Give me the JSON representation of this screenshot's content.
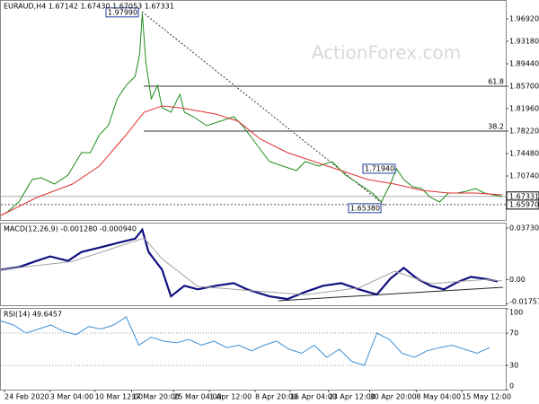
{
  "chart_data": [
    {
      "type": "line",
      "title": "EURAUD,H4 1.67142 1.67430 1.67053 1.67331",
      "watermark": "ActionForex.com",
      "xlim": [
        0,
        282
      ],
      "xticks": [
        {
          "value": 2,
          "label": "24 Feb 2020"
        },
        {
          "value": 27.5,
          "label": "3 Mar 04:00"
        },
        {
          "value": 52.5,
          "label": "10 Mar 12:00"
        },
        {
          "value": 73,
          "label": "17 Mar 20:00"
        },
        {
          "value": 96.5,
          "label": "25 Mar 04:00"
        },
        {
          "value": 116.5,
          "label": "1 Apr 12:00"
        },
        {
          "value": 142,
          "label": "8 Apr 20:00"
        },
        {
          "value": 161.5,
          "label": "16 Apr 04:00"
        },
        {
          "value": 183,
          "label": "23 Apr 12:00"
        },
        {
          "value": 206,
          "label": "30 Apr 20:00"
        },
        {
          "value": 232,
          "label": "8 May 04:00"
        },
        {
          "value": 257.5,
          "label": "15 May 12:00"
        }
      ],
      "ylim": [
        1.6341,
        1.9991
      ],
      "yticks": [
        {
          "value": 1.9692,
          "label": "1.96920"
        },
        {
          "value": 1.9318,
          "label": "1.93180"
        },
        {
          "value": 1.8944,
          "label": "1.89440"
        },
        {
          "value": 1.857,
          "label": "1.85700"
        },
        {
          "value": 1.8196,
          "label": "1.81960"
        },
        {
          "value": 1.7822,
          "label": "1.78220"
        },
        {
          "value": 1.7448,
          "label": "1.74480"
        },
        {
          "value": 1.7074,
          "label": "1.70740"
        }
      ],
      "series": [
        {
          "color": "#1e8c1e",
          "x": [
            2.5,
            10,
            17.5,
            22.5,
            30,
            37.5,
            45,
            50,
            55,
            60,
            65,
            70,
            75,
            77.5,
            79,
            81,
            84,
            87.5,
            90,
            95,
            100,
            102.5,
            107.5,
            115,
            122.5,
            130,
            135,
            142.5,
            150,
            157.5,
            165,
            170,
            177.5,
            185,
            192.5,
            200,
            207.5,
            212.5,
            217.5,
            221,
            225,
            230,
            235,
            240,
            245,
            250,
            255,
            260,
            265,
            270,
            275,
            280
          ],
          "values": [
            1.6446,
            1.664,
            1.7014,
            1.7044,
            1.6939,
            1.7089,
            1.7463,
            1.7463,
            1.7762,
            1.7912,
            1.8361,
            1.8585,
            1.8735,
            1.9109,
            1.9782,
            1.8959,
            1.8361,
            1.8585,
            1.8211,
            1.8136,
            1.8435,
            1.8136,
            1.8061,
            1.7912,
            1.7987,
            1.8061,
            1.7912,
            1.7613,
            1.7313,
            1.7239,
            1.7164,
            1.7313,
            1.7239,
            1.7313,
            1.7089,
            1.6939,
            1.679,
            1.664,
            1.6939,
            1.7194,
            1.7014,
            1.6894,
            1.6865,
            1.6715,
            1.664,
            1.679,
            1.679,
            1.682,
            1.6865,
            1.679,
            1.676,
            1.6733
          ]
        },
        {
          "color": "#e03030",
          "x": [
            0,
            20,
            40,
            55,
            70,
            80,
            90,
            100,
            120,
            132.5,
            145,
            160,
            175,
            190,
            205,
            220,
            235,
            250,
            265,
            280
          ],
          "values": [
            1.6416,
            1.6715,
            1.6939,
            1.7239,
            1.7762,
            1.8136,
            1.8241,
            1.8211,
            1.8106,
            1.7987,
            1.7687,
            1.7463,
            1.7313,
            1.7164,
            1.7014,
            1.6939,
            1.6835,
            1.679,
            1.679,
            1.676
          ]
        }
      ],
      "annotations": [
        {
          "value": 1.9799,
          "label": "1.97990"
        },
        {
          "value": 1.7194,
          "label": "1.71940"
        },
        {
          "value": 1.6538,
          "label": "1.65380"
        }
      ],
      "levels": [
        {
          "value": 1.857,
          "label": "61.8"
        },
        {
          "value": 1.7822,
          "label": "38.2"
        }
      ],
      "price_marks": [
        {
          "value": 1.67331,
          "label": "1.67331"
        },
        {
          "value": 1.6597,
          "label": "1.65970"
        }
      ]
    },
    {
      "type": "line",
      "title": "MACD(12,26,9) -0.001280 -0.000940",
      "xlim": [
        0,
        282
      ],
      "ylim": [
        -0.0186,
        0.0405
      ],
      "yticks": [
        0.037301,
        {
          "value": 0,
          "label": "0.00"
        },
        -0.017577
      ],
      "series": [
        {
          "color": "#101080",
          "x": [
            0,
            10,
            20,
            27.5,
            37.5,
            45,
            55,
            65,
            75,
            79,
            82.5,
            90,
            95,
            102.5,
            110,
            120,
            130,
            137.5,
            150,
            160,
            170,
            180,
            190,
            200,
            210,
            217.5,
            225,
            232.5,
            240,
            247.5,
            255,
            262.5,
            270,
            277.5
          ],
          "values": [
            0.0071,
            0.009,
            0.0135,
            0.0167,
            0.0135,
            0.0199,
            0.0231,
            0.0264,
            0.0296,
            0.036,
            0.0199,
            0.0071,
            -0.0122,
            -0.0045,
            -0.0071,
            -0.0045,
            -0.0026,
            -0.0071,
            -0.0122,
            -0.0141,
            -0.009,
            -0.0045,
            -0.0026,
            -0.0071,
            -0.0109,
            0.0006,
            0.0084,
            0.0006,
            -0.0045,
            -0.0071,
            -0.0019,
            0.0019,
            0.0006,
            -0.0013
          ]
        },
        {
          "color": "#a0a0a0",
          "x": [
            0,
            40,
            80,
            90,
            110,
            140,
            170,
            200,
            220,
            240,
            270,
            280
          ],
          "values": [
            0.0071,
            0.013,
            0.03,
            0.015,
            -0.005,
            -0.008,
            -0.011,
            -0.006,
            0.006,
            -0.003,
            0,
            -0.001
          ]
        }
      ]
    },
    {
      "type": "line",
      "title": "RSI(14) 49.6457",
      "xlim": [
        0,
        282
      ],
      "ylim": [
        0,
        100
      ],
      "yticks": [
        100,
        70,
        30,
        0
      ],
      "series": [
        {
          "color": "#3b8fd9",
          "x": [
            0,
            7,
            14,
            21,
            28,
            35,
            42,
            49,
            56,
            63,
            70,
            77,
            84,
            91,
            98,
            105,
            112,
            119,
            126,
            133,
            140,
            147,
            154,
            161,
            168,
            175,
            182,
            189,
            196,
            203,
            210,
            217,
            224,
            231,
            238,
            245,
            252,
            259,
            266,
            273
          ],
          "values": [
            85,
            80,
            70,
            75,
            80,
            72,
            68,
            78,
            75,
            80,
            90,
            55,
            65,
            60,
            58,
            62,
            55,
            60,
            52,
            55,
            48,
            55,
            60,
            50,
            45,
            55,
            40,
            50,
            35,
            30,
            70,
            62,
            45,
            40,
            48,
            52,
            55,
            50,
            45,
            52
          ]
        }
      ]
    }
  ]
}
